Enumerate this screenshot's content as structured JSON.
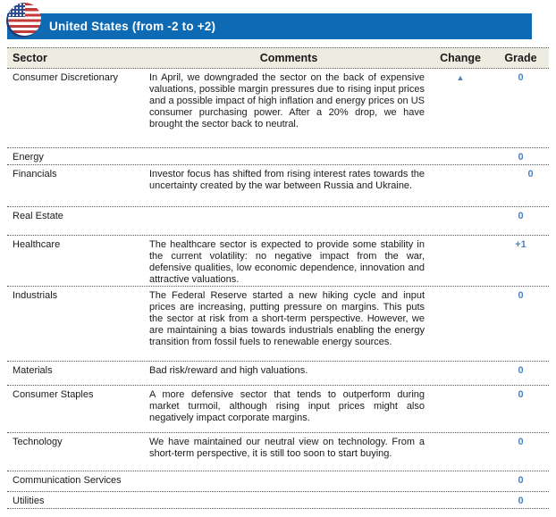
{
  "header": {
    "title": "United States (from -2 to +2)",
    "bar_color": "#0F6AB4",
    "flag_icon": "us-flag-icon"
  },
  "table": {
    "columns": {
      "sector": "Sector",
      "comments": "Comments",
      "change": "Change",
      "grade": "Grade"
    },
    "change_up_symbol": "▲",
    "accent_color": "#4F81BD",
    "rows": [
      {
        "sector": "Consumer Discretionary",
        "comment": "In April, we downgraded the sector on the back of expensive valuations, possible margin pressures due to rising input prices and a possible impact of high inflation and energy prices on US consumer purchasing power. After a 20% drop, we have brought the sector back to neutral.",
        "change": "up",
        "grade": "0"
      },
      {
        "sector": "Energy",
        "comment": "",
        "change": "",
        "grade": "0"
      },
      {
        "sector": "Financials",
        "comment": "Investor focus has shifted from rising interest rates towards the uncertainty created by the war between Russia and Ukraine.",
        "change": "",
        "grade": "0"
      },
      {
        "sector": "Real Estate",
        "comment": "",
        "change": "",
        "grade": "0"
      },
      {
        "sector": "Healthcare",
        "comment": "The healthcare sector is expected to provide some stability in the current volatility: no negative impact from the war, defensive qualities, low economic dependence, innovation and attractive valuations.",
        "change": "",
        "grade": "+1"
      },
      {
        "sector": "Industrials",
        "comment": "The Federal Reserve started a new hiking cycle and input prices are increasing, putting pressure on margins. This puts the sector at risk from a short-term perspective. However, we are maintaining a bias towards industrials enabling the energy transition from fossil fuels to renewable energy sources.",
        "change": "",
        "grade": "0"
      },
      {
        "sector": "Materials",
        "comment": "Bad risk/reward and high valuations.",
        "change": "",
        "grade": "0"
      },
      {
        "sector": "Consumer Staples",
        "comment": "A more defensive sector that tends to outperform during market turmoil, although rising input prices might also negatively impact corporate margins.",
        "change": "",
        "grade": "0"
      },
      {
        "sector": "Technology",
        "comment": "We have maintained our neutral view on technology. From a short-term perspective, it is still too soon to start buying.",
        "change": "",
        "grade": "0"
      },
      {
        "sector": "Communication Services",
        "comment": "",
        "change": "",
        "grade": "0"
      },
      {
        "sector": "Utilities",
        "comment": "",
        "change": "",
        "grade": "0"
      }
    ]
  }
}
